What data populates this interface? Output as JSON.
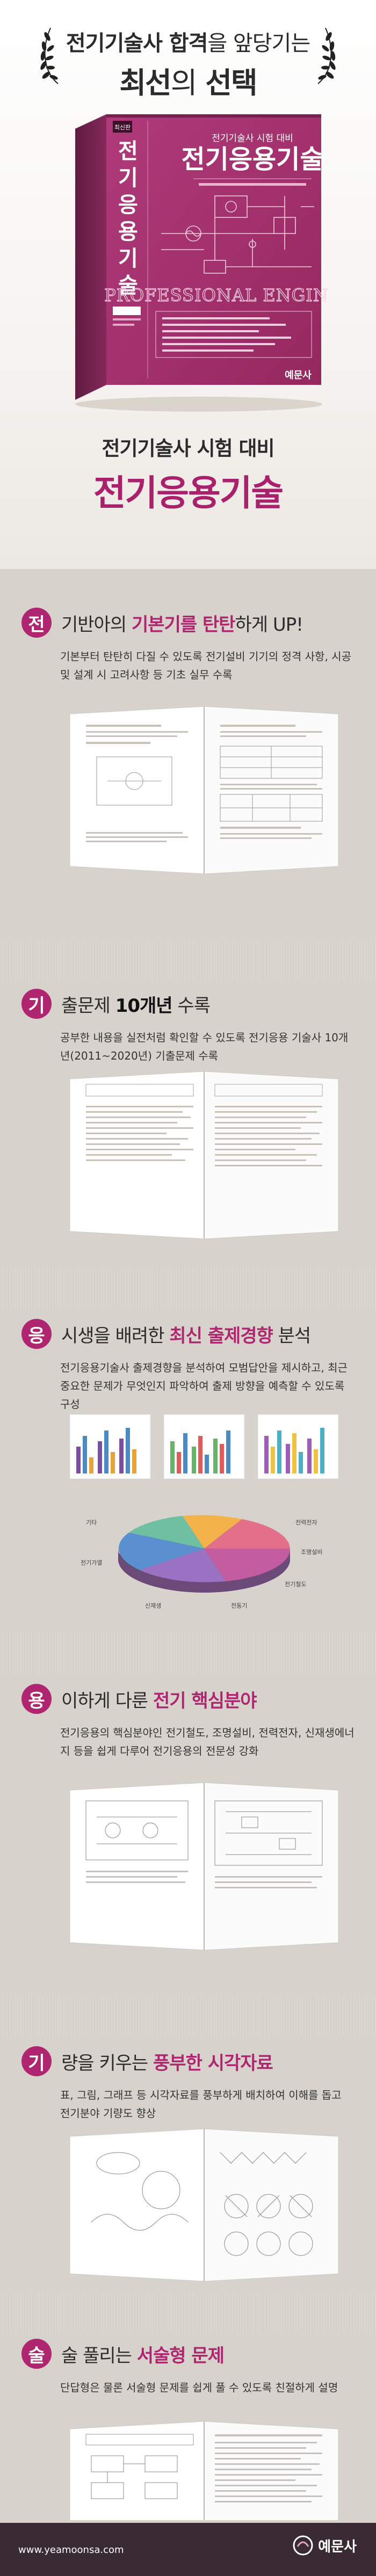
{
  "hero": {
    "tagline_bold": "전기기술사 합격",
    "tagline_rest": "을 앞당기는",
    "tagline2_bold1": "최선",
    "tagline2_light": "의",
    "tagline2_bold2": "선택",
    "subtitle": "전기기술사 시험 대비",
    "title": "전기응용기술",
    "cover": {
      "corner_badge": "최신판",
      "spine_title": "전기응용기술",
      "series": "전기기술사 시험 대비",
      "title": "전기응용기술",
      "english": "PROFESSIONAL ENGINEER",
      "publisher": "예문사"
    }
  },
  "sections": [
    {
      "badge": "전",
      "head_pre": "기반아의 ",
      "head_hl": "기본기를 탄탄",
      "head_post": "하게 UP!",
      "desc": "기본부터 탄탄히 다질 수 있도록 전기설비 기기의 정격 사항, 시공 및 설계 시 고려사항 등 기초 실무 수록"
    },
    {
      "badge": "기",
      "head_pre": "출문제 ",
      "head_hl": "10개년",
      "head_post": " 수록",
      "desc": "공부한 내용을 실전처럼 확인할 수 있도록 전기응용 기술사 10개년(2011~2020년) 기출문제 수록"
    },
    {
      "badge": "응",
      "head_pre": "시생을 배려한 ",
      "head_hl": "최신 출제경향",
      "head_post": " 분석",
      "desc": "전기응용기술사 출제경향을 분석하여 모범답안을 제시하고, 최근 중요한 문제가 무엇인지 파악하여 출제 방향을 예측할 수 있도록 구성"
    },
    {
      "badge": "용",
      "head_pre": "이하게 다룬 ",
      "head_hl": "전기 핵심분야",
      "head_post": "",
      "desc": "전기응용의 핵심분야인 전기철도, 조명설비, 전력전자, 신재생에너지 등을 쉽게 다루어 전기응용의 전문성 강화"
    },
    {
      "badge": "기",
      "head_pre": "량을 키우는 ",
      "head_hl": "풍부한 시각자료",
      "head_post": "",
      "desc": "표, 그림, 그래프 등 시각자료를 풍부하게 배치하여 이해를 돕고 전기분야 기량도 향상"
    },
    {
      "badge": "술",
      "head_pre": "술 풀리는 ",
      "head_hl": "서술형 문제",
      "head_post": "",
      "desc": "단답형은 물론 서술형 문제를 쉽게 풀 수 있도록 친절하게 설명"
    }
  ],
  "chart_labels": [
    "전력전자",
    "조명설비",
    "전기철도",
    "전동기",
    "신재생",
    "전기가열",
    "기타"
  ],
  "footer": {
    "url": "www.yeamoonsa.com",
    "logo": "예문사"
  },
  "colors": {
    "accent": "#b0256f",
    "cover": "#a4326f",
    "title": "#a9216a",
    "footer": "#3a2b33"
  }
}
